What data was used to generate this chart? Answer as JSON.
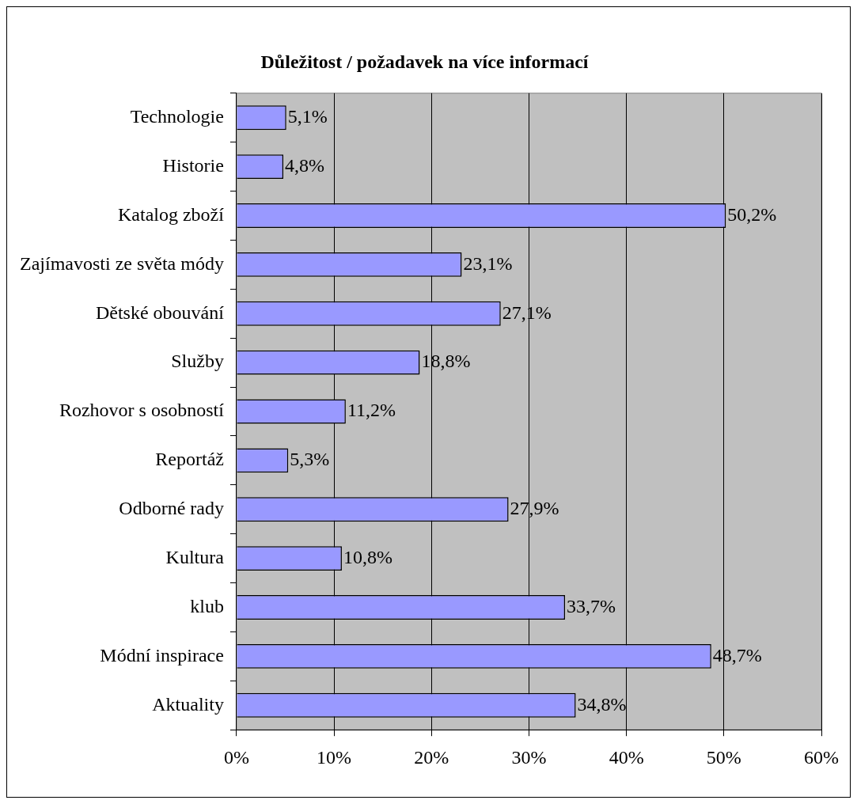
{
  "chart_data": {
    "type": "bar",
    "orientation": "horizontal",
    "title": "Důležitost / požadavek na více informací",
    "categories": [
      "Technologie",
      "Historie",
      "Katalog zboží",
      "Zajímavosti ze světa módy",
      "Dětské obouvání",
      "Služby",
      "Rozhovor s osobností",
      "Reportáž",
      "Odborné rady",
      "Kultura",
      "klub",
      "Módní inspirace",
      "Aktuality"
    ],
    "values": [
      5.1,
      4.8,
      50.2,
      23.1,
      27.1,
      18.8,
      11.2,
      5.3,
      27.9,
      10.8,
      33.7,
      48.7,
      34.8
    ],
    "value_labels": [
      "5,1%",
      "4,8%",
      "50,2%",
      "23,1%",
      "27,1%",
      "18,8%",
      "11,2%",
      "5,3%",
      "27,9%",
      "10,8%",
      "33,7%",
      "48,7%",
      "34,8%"
    ],
    "color": "#9999ff",
    "xlim": [
      0,
      60
    ],
    "xticks": [
      {
        "value": 0,
        "label": "0%"
      },
      {
        "value": 10,
        "label": "10%"
      },
      {
        "value": 20,
        "label": "20%"
      },
      {
        "value": 30,
        "label": "30%"
      },
      {
        "value": 40,
        "label": "40%"
      },
      {
        "value": 50,
        "label": "50%"
      },
      {
        "value": 60,
        "label": "60%"
      }
    ],
    "grid": "x",
    "legend": false
  }
}
